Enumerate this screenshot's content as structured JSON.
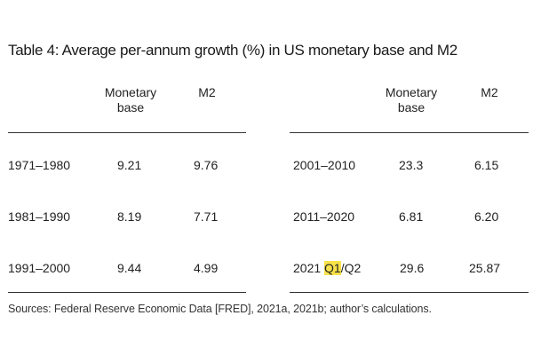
{
  "title": "Table 4: Average per-annum growth (%) in US monetary base and M2",
  "columns": {
    "monetary_base_line1": "Monetary",
    "monetary_base_line2": "base",
    "m2": "M2"
  },
  "left_rows": [
    {
      "period": "1971–1980",
      "monetary_base": "9.21",
      "m2": "9.76"
    },
    {
      "period": "1981–1990",
      "monetary_base": "8.19",
      "m2": "7.71"
    },
    {
      "period": "1991–2000",
      "monetary_base": "9.44",
      "m2": "4.99"
    }
  ],
  "right_rows": [
    {
      "period": "2001–2010",
      "monetary_base": "23.3",
      "m2": "6.15"
    },
    {
      "period": "2011–2020",
      "monetary_base": "6.81",
      "m2": "6.20"
    },
    {
      "period_prefix": "2021 ",
      "period_highlight": "Q1",
      "period_suffix": "/Q2",
      "monetary_base": "29.6",
      "m2": "25.87"
    }
  ],
  "highlight_color": "#f7e24a",
  "source": "Sources: Federal Reserve Economic Data [FRED], 2021a, 2021b; author’s calculations."
}
